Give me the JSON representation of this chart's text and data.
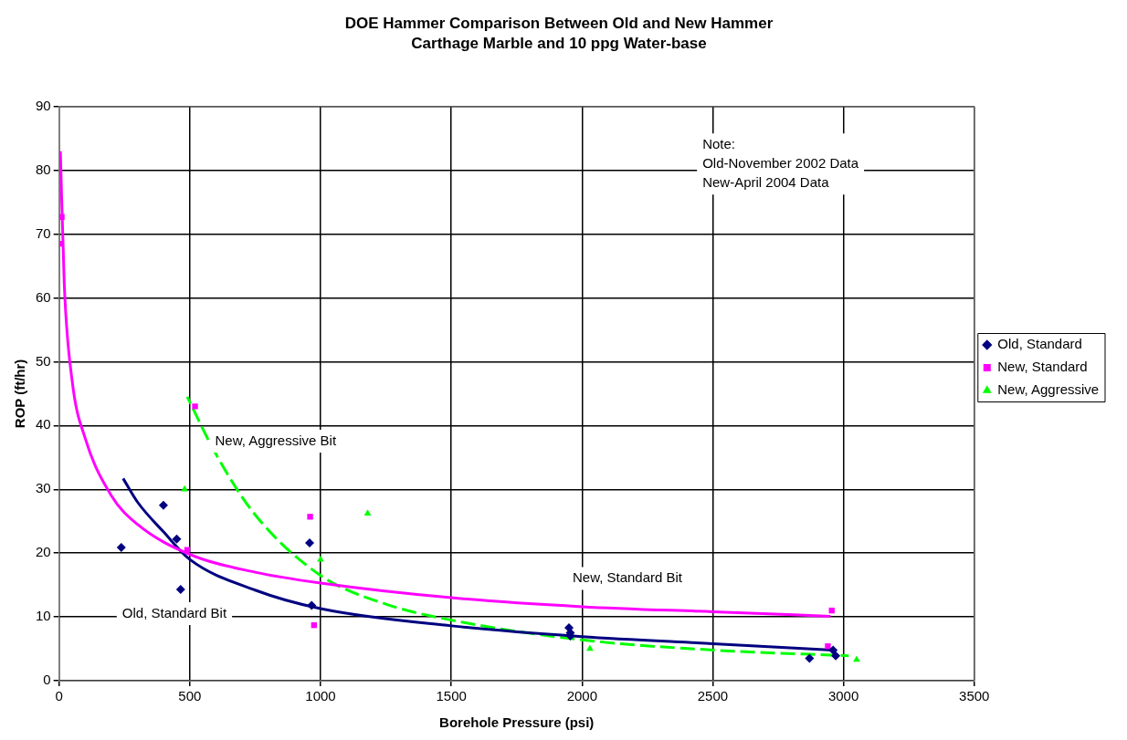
{
  "chart_data": {
    "type": "scatter",
    "title": "DOE Hammer Comparison Between Old and New Hammer",
    "subtitle": "Carthage Marble and 10 ppg Water-base",
    "xlabel": "Borehole Pressure (psi)",
    "ylabel": "ROP (ft/hr)",
    "xlim": [
      0,
      3500
    ],
    "xticks": [
      0,
      500,
      1000,
      1500,
      2000,
      2500,
      3000,
      3500
    ],
    "ylim": [
      0,
      90
    ],
    "yticks": [
      0,
      10,
      20,
      30,
      40,
      50,
      60,
      70,
      80,
      90
    ],
    "grid": true,
    "legend": "right",
    "series": [
      {
        "name": "Old, Standard",
        "type": "scatter",
        "marker": "diamond",
        "color": "#000080",
        "x": [
          238,
          399,
          450,
          465,
          958,
          966,
          1950,
          1955,
          1955,
          2870,
          2960,
          2970
        ],
        "values": [
          20.9,
          27.5,
          22.2,
          14.3,
          21.6,
          11.8,
          8.3,
          7.5,
          7,
          3.5,
          4.8,
          3.9
        ]
      },
      {
        "name": "New, Standard",
        "type": "scatter",
        "marker": "square",
        "color": "#ff00ff",
        "x": [
          5,
          10,
          520,
          490,
          960,
          975,
          2955,
          2940
        ],
        "values": [
          68.5,
          72.7,
          43,
          20.5,
          25.7,
          8.7,
          11,
          5.4
        ]
      },
      {
        "name": "New, Aggressive",
        "type": "scatter",
        "marker": "triangle",
        "color": "#00ff00",
        "x": [
          480,
          1000,
          1180,
          2030,
          3050
        ],
        "values": [
          30,
          19,
          26.2,
          5,
          3.3
        ]
      },
      {
        "type": "line",
        "marker": "none",
        "line_style": "solid",
        "color": "#ff00ff",
        "x": [
          5,
          20,
          50,
          100,
          200,
          300,
          500,
          750,
          1000,
          1500,
          2000,
          2500,
          2950
        ],
        "values": [
          83,
          62,
          47,
          38,
          29,
          24.5,
          19.8,
          17,
          15.3,
          13,
          11.6,
          10.8,
          10.1
        ]
      },
      {
        "type": "line",
        "marker": "none",
        "line_style": "solid",
        "color": "#000080",
        "x": [
          245,
          300,
          400,
          500,
          750,
          1000,
          1500,
          2000,
          2500,
          2960
        ],
        "values": [
          31.7,
          28,
          23.3,
          19,
          14.2,
          11.3,
          8.6,
          6.9,
          5.8,
          4.8
        ]
      },
      {
        "type": "line",
        "marker": "none",
        "line_style": "dashed",
        "color": "#00ff00",
        "x": [
          490,
          600,
          750,
          1000,
          1250,
          1500,
          2000,
          2500,
          3020
        ],
        "values": [
          44.5,
          35.5,
          26,
          16.5,
          12,
          9.5,
          6.4,
          4.8,
          3.9
        ]
      }
    ],
    "annotations": [
      "New, Aggressive Bit",
      "Old, Standard Bit",
      "New, Standard Bit",
      "Note:\nOld-November 2002 Data\nNew-April 2004 Data"
    ]
  }
}
